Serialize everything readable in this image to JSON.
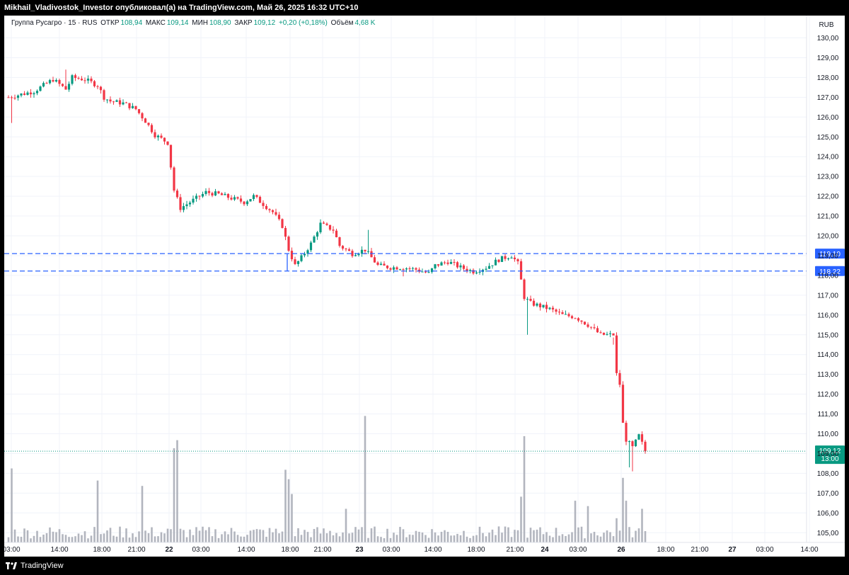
{
  "header": {
    "text": "Mikhail_Vladivostok_Investor опубликовал(а) на TradingView.com, Май 26, 2025 16:32 UTC+10"
  },
  "legend": {
    "symbol": "Группа Русагро · 15 · RUS",
    "open_label": "ОТКР",
    "open": "108,94",
    "high_label": "МАКС",
    "high": "109,14",
    "low_label": "МИН",
    "low": "108,90",
    "close_label": "ЗАКР",
    "close": "109,12",
    "change": "+0,20 (+0,18%)",
    "volume_label": "Объём",
    "volume": "4,68 K"
  },
  "footer": {
    "brand": "TradingView"
  },
  "colors": {
    "up": "#089981",
    "down": "#f23645",
    "level": "#2962ff",
    "volume": "#b2b5be",
    "price_line": "#089981"
  },
  "chart_data": {
    "type": "candlestick",
    "currency": "RUB",
    "interval": "15",
    "y_ticks": [
      "130,00",
      "129,00",
      "128,00",
      "127,00",
      "126,00",
      "125,00",
      "124,00",
      "123,00",
      "122,00",
      "121,00",
      "120,00",
      "119,00",
      "118,00",
      "117,00",
      "116,00",
      "115,00",
      "114,00",
      "113,00",
      "112,00",
      "111,00",
      "110,00",
      "109,00",
      "108,00",
      "107,00",
      "106,00",
      "105,00"
    ],
    "y_range": [
      104.8,
      130.4
    ],
    "x_ticks": [
      "03:00",
      "14:00",
      "18:00",
      "21:00",
      "22",
      "03:00",
      "14:00",
      "18:00",
      "21:00",
      "23",
      "03:00",
      "14:00",
      "18:00",
      "21:00",
      "24",
      "03:00",
      "26",
      "18:00",
      "21:00",
      "27",
      "03:00",
      "14:00"
    ],
    "levels": [
      {
        "price": 119.1,
        "label": "119,10"
      },
      {
        "price": 118.22,
        "label": "118,22"
      }
    ],
    "last_price": {
      "value": 109.12,
      "label": "109,12",
      "countdown": "13:00"
    },
    "price_path": [
      [
        0,
        127.0
      ],
      [
        8,
        127.3
      ],
      [
        14,
        127.9
      ],
      [
        18,
        127.4
      ],
      [
        20,
        128.0
      ],
      [
        24,
        127.9
      ],
      [
        28,
        127.6
      ],
      [
        30,
        127.0
      ],
      [
        32,
        126.8
      ],
      [
        36,
        126.7
      ],
      [
        40,
        126.4
      ],
      [
        43,
        125.8
      ],
      [
        46,
        125.1
      ],
      [
        50,
        124.7
      ],
      [
        52,
        122.3
      ],
      [
        54,
        121.4
      ],
      [
        58,
        121.8
      ],
      [
        62,
        122.2
      ],
      [
        66,
        122.1
      ],
      [
        70,
        121.9
      ],
      [
        74,
        121.7
      ],
      [
        77,
        122.0
      ],
      [
        80,
        121.6
      ],
      [
        83,
        121.2
      ],
      [
        86,
        120.5
      ],
      [
        88,
        119.3
      ],
      [
        90,
        118.5
      ],
      [
        92,
        118.9
      ],
      [
        95,
        119.6
      ],
      [
        98,
        120.6
      ],
      [
        102,
        120.3
      ],
      [
        104,
        119.5
      ],
      [
        108,
        119.1
      ],
      [
        112,
        119.3
      ],
      [
        116,
        118.5
      ],
      [
        120,
        118.4
      ],
      [
        124,
        118.4
      ],
      [
        128,
        118.3
      ],
      [
        132,
        118.1
      ],
      [
        134,
        118.5
      ],
      [
        138,
        118.7
      ],
      [
        142,
        118.4
      ],
      [
        146,
        118.2
      ],
      [
        150,
        118.4
      ],
      [
        154,
        118.8
      ],
      [
        158,
        119.0
      ],
      [
        160,
        118.6
      ],
      [
        162,
        116.9
      ],
      [
        164,
        116.6
      ],
      [
        166,
        116.5
      ],
      [
        170,
        116.3
      ],
      [
        174,
        116.0
      ],
      [
        178,
        115.9
      ],
      [
        182,
        115.5
      ],
      [
        186,
        115.0
      ],
      [
        190,
        115.0
      ],
      [
        191,
        113.0
      ],
      [
        192,
        112.5
      ],
      [
        193,
        110.5
      ],
      [
        194,
        109.7
      ],
      [
        196,
        109.3
      ],
      [
        198,
        109.9
      ],
      [
        200,
        109.12
      ]
    ],
    "wicks": [
      {
        "i": 1,
        "low": 125.7
      },
      {
        "i": 18,
        "high": 128.4
      },
      {
        "i": 124,
        "low": 117.95
      },
      {
        "i": 113,
        "high": 120.3
      },
      {
        "i": 163,
        "low": 115.0
      },
      {
        "i": 190,
        "high": 114.5
      },
      {
        "i": 196,
        "low": 108.1
      },
      {
        "i": 195,
        "low": 108.3
      }
    ],
    "volume_spikes": [
      {
        "i": 1,
        "v": 0.55
      },
      {
        "i": 28,
        "v": 0.46
      },
      {
        "i": 52,
        "v": 0.7
      },
      {
        "i": 53,
        "v": 0.76
      },
      {
        "i": 42,
        "v": 0.42
      },
      {
        "i": 87,
        "v": 0.54
      },
      {
        "i": 88,
        "v": 0.47
      },
      {
        "i": 89,
        "v": 0.36
      },
      {
        "i": 106,
        "v": 0.25
      },
      {
        "i": 112,
        "v": 0.94
      },
      {
        "i": 162,
        "v": 0.79
      },
      {
        "i": 161,
        "v": 0.34
      },
      {
        "i": 178,
        "v": 0.31
      },
      {
        "i": 182,
        "v": 0.27
      },
      {
        "i": 193,
        "v": 0.48
      },
      {
        "i": 194,
        "v": 0.31
      },
      {
        "i": 199,
        "v": 0.25
      },
      {
        "i": 191,
        "v": 0.18
      }
    ]
  }
}
